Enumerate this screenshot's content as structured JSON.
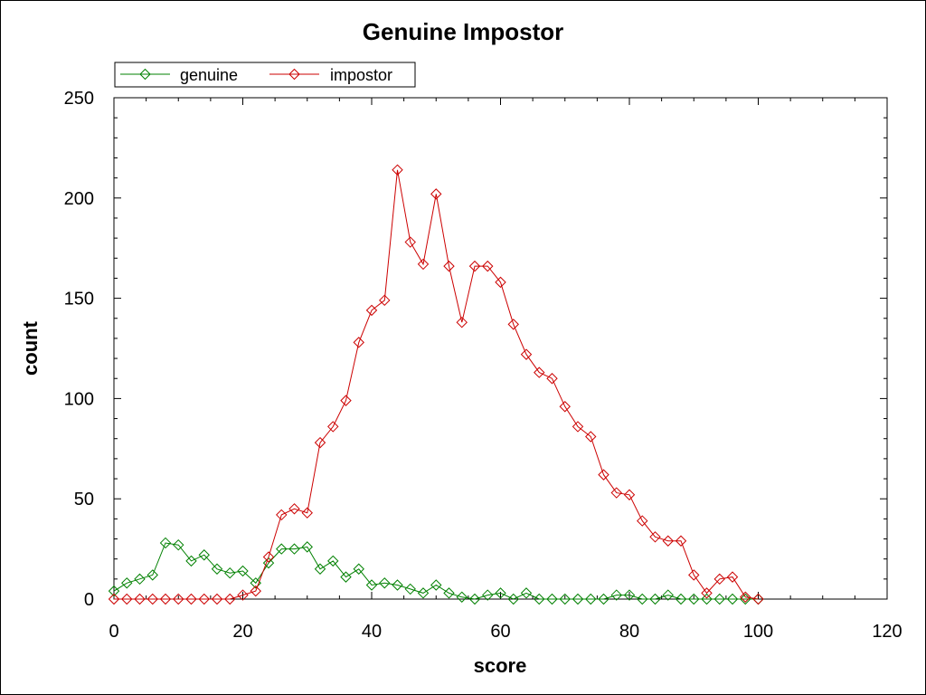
{
  "chart_data": {
    "type": "line",
    "title": "Genuine Impostor",
    "xlabel": "score",
    "ylabel": "count",
    "xlim": [
      0,
      120
    ],
    "ylim": [
      0,
      250
    ],
    "xticks": [
      0,
      20,
      40,
      60,
      80,
      100,
      120
    ],
    "yticks": [
      0,
      50,
      100,
      150,
      200,
      250
    ],
    "legend_position": "top-left",
    "grid": false,
    "series": [
      {
        "name": "genuine",
        "color": "#008000",
        "marker": "diamond",
        "x": [
          0,
          2,
          4,
          6,
          8,
          10,
          12,
          14,
          16,
          18,
          20,
          22,
          24,
          26,
          28,
          30,
          32,
          34,
          36,
          38,
          40,
          42,
          44,
          46,
          48,
          50,
          52,
          54,
          56,
          58,
          60,
          62,
          64,
          66,
          68,
          70,
          72,
          74,
          76,
          78,
          80,
          82,
          84,
          86,
          88,
          90,
          92,
          94,
          96,
          98,
          100
        ],
        "y": [
          4,
          8,
          10,
          12,
          28,
          27,
          19,
          22,
          15,
          13,
          14,
          8,
          18,
          25,
          25,
          26,
          15,
          19,
          11,
          15,
          7,
          8,
          7,
          5,
          3,
          7,
          3,
          1,
          0,
          2,
          3,
          0,
          3,
          0,
          0,
          0,
          0,
          0,
          0,
          2,
          2,
          0,
          0,
          2,
          0,
          0,
          0,
          0,
          0,
          0,
          0
        ]
      },
      {
        "name": "impostor",
        "color": "#cc0000",
        "marker": "diamond",
        "x": [
          0,
          2,
          4,
          6,
          8,
          10,
          12,
          14,
          16,
          18,
          20,
          22,
          24,
          26,
          28,
          30,
          32,
          34,
          36,
          38,
          40,
          42,
          44,
          46,
          48,
          50,
          52,
          54,
          56,
          58,
          60,
          62,
          64,
          66,
          68,
          70,
          72,
          74,
          76,
          78,
          80,
          82,
          84,
          86,
          88,
          90,
          92,
          94,
          96,
          98,
          100
        ],
        "y": [
          0,
          0,
          0,
          0,
          0,
          0,
          0,
          0,
          0,
          0,
          2,
          4,
          21,
          42,
          45,
          43,
          78,
          86,
          99,
          128,
          144,
          149,
          214,
          178,
          167,
          202,
          166,
          138,
          166,
          166,
          158,
          137,
          122,
          113,
          110,
          96,
          86,
          81,
          62,
          53,
          52,
          39,
          31,
          29,
          29,
          12,
          3,
          10,
          11,
          1,
          0
        ]
      }
    ]
  }
}
